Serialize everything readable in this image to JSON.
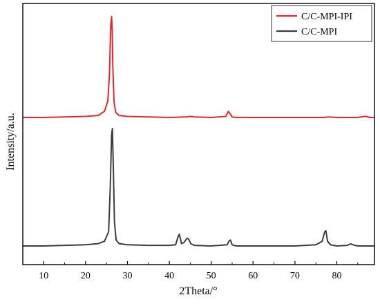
{
  "chart_data": {
    "type": "line",
    "xlabel": "2Theta/°",
    "ylabel": "Intensity/a.u.",
    "xlim": [
      5,
      89
    ],
    "xticks": [
      10,
      20,
      30,
      40,
      50,
      60,
      70,
      80
    ],
    "yticks_shown": false,
    "grid": false,
    "legend_position": "top-right",
    "series": [
      {
        "name": "C/C-MPI-IPI",
        "color": "#e8262d",
        "offset": 1.0,
        "x": [
          5,
          10,
          15,
          20,
          23,
          24.5,
          25.3,
          25.7,
          26.0,
          26.2,
          26.35,
          26.5,
          26.8,
          27.2,
          28,
          30,
          35,
          40,
          44,
          45,
          46,
          50,
          53.5,
          54.1,
          54.5,
          55.0,
          56,
          60,
          70,
          77,
          78,
          80,
          85,
          86.5,
          87,
          88,
          89
        ],
        "y": [
          0.0,
          0.0,
          0.005,
          0.01,
          0.02,
          0.06,
          0.16,
          0.42,
          0.92,
          1.0,
          0.86,
          0.5,
          0.15,
          0.05,
          0.02,
          0.01,
          0.005,
          0.0,
          0.005,
          0.01,
          0.005,
          0.0,
          0.01,
          0.06,
          0.04,
          0.005,
          0.0,
          0.0,
          0.0,
          0.0,
          0.005,
          0.0,
          0.0,
          0.01,
          0.01,
          0.0,
          0.0
        ]
      },
      {
        "name": "C/C-MPI",
        "color": "#3c3c3c",
        "offset": 0.0,
        "x": [
          5,
          10,
          15,
          20,
          23,
          24.5,
          25.5,
          25.9,
          26.2,
          26.4,
          26.6,
          26.9,
          27.3,
          28,
          30,
          35,
          40,
          41.5,
          42.0,
          42.4,
          42.9,
          43.5,
          44.2,
          44.6,
          45.1,
          46,
          50,
          53.8,
          54.3,
          54.6,
          55.0,
          56,
          60,
          70,
          75,
          76.5,
          77.1,
          77.4,
          77.8,
          78.5,
          80,
          82.5,
          83.3,
          84.0,
          85,
          89
        ],
        "y": [
          0.0,
          0.0,
          0.005,
          0.01,
          0.02,
          0.04,
          0.12,
          0.5,
          0.95,
          1.0,
          0.7,
          0.2,
          0.05,
          0.02,
          0.01,
          0.005,
          0.005,
          0.01,
          0.07,
          0.1,
          0.02,
          0.03,
          0.065,
          0.06,
          0.02,
          0.005,
          0.0,
          0.01,
          0.045,
          0.05,
          0.01,
          0.0,
          0.0,
          0.0,
          0.01,
          0.04,
          0.12,
          0.13,
          0.04,
          0.01,
          0.0,
          0.005,
          0.018,
          0.008,
          0.0,
          0.0
        ]
      }
    ]
  }
}
